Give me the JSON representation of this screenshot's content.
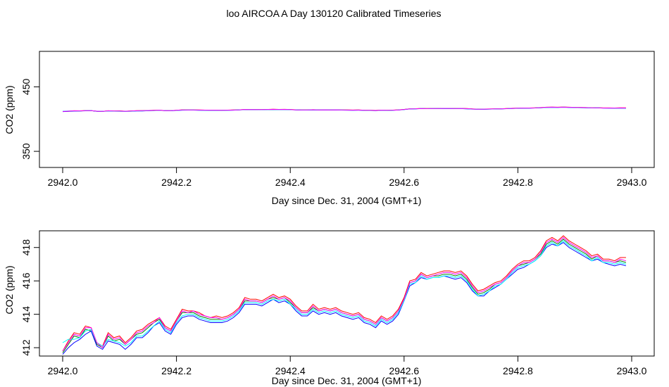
{
  "title": "loo AIRCOA A  Day 130120  Calibrated Timeseries",
  "chart_data": [
    {
      "type": "line",
      "xlabel": "Day since Dec. 31, 2004 (GMT+1)",
      "ylabel": "CO2 (ppm)",
      "xlim": [
        2942.0,
        2943.0
      ],
      "ylim": [
        325,
        505
      ],
      "x_ticks": [
        "2942.0",
        "2942.2",
        "2942.4",
        "2942.6",
        "2942.8",
        "2943.0"
      ],
      "y_ticks": [
        "350",
        "450"
      ],
      "x": [
        2942.0,
        2942.01,
        2942.02,
        2942.03,
        2942.04,
        2942.05,
        2942.06,
        2942.07,
        2942.08,
        2942.09,
        2942.1,
        2942.11,
        2942.12,
        2942.13,
        2942.14,
        2942.15,
        2942.16,
        2942.17,
        2942.18,
        2942.19,
        2942.2,
        2942.21,
        2942.22,
        2942.23,
        2942.24,
        2942.25,
        2942.26,
        2942.27,
        2942.28,
        2942.29,
        2942.3,
        2942.31,
        2942.32,
        2942.33,
        2942.34,
        2942.35,
        2942.36,
        2942.37,
        2942.38,
        2942.39,
        2942.4,
        2942.41,
        2942.42,
        2942.43,
        2942.44,
        2942.45,
        2942.46,
        2942.47,
        2942.48,
        2942.49,
        2942.5,
        2942.51,
        2942.52,
        2942.53,
        2942.54,
        2942.55,
        2942.56,
        2942.57,
        2942.58,
        2942.59,
        2942.6,
        2942.61,
        2942.62,
        2942.63,
        2942.64,
        2942.65,
        2942.66,
        2942.67,
        2942.68,
        2942.69,
        2942.7,
        2942.71,
        2942.72,
        2942.73,
        2942.74,
        2942.75,
        2942.76,
        2942.77,
        2942.78,
        2942.79,
        2942.8,
        2942.81,
        2942.82,
        2942.83,
        2942.84,
        2942.85,
        2942.86,
        2942.87,
        2942.88,
        2942.89,
        2942.9,
        2942.91,
        2942.92,
        2942.93,
        2942.94,
        2942.95,
        2942.96,
        2942.97,
        2942.98,
        2942.99
      ],
      "series": [
        {
          "color": "#ff0000",
          "values": [
            411.8,
            412.4,
            412.9,
            412.8,
            413.3,
            413.2,
            412.3,
            412.1,
            412.9,
            412.6,
            412.7,
            412.3,
            412.6,
            413.0,
            413.1,
            413.4,
            413.6,
            413.8,
            413.3,
            413.1,
            413.7,
            414.3,
            414.2,
            414.2,
            414.1,
            413.9,
            413.8,
            413.9,
            413.8,
            413.9,
            414.1,
            414.4,
            415.0,
            414.9,
            414.9,
            414.8,
            415.0,
            415.2,
            415.0,
            415.1,
            414.9,
            414.5,
            414.2,
            414.2,
            414.6,
            414.3,
            414.4,
            414.3,
            414.4,
            414.2,
            414.1,
            414.0,
            414.1,
            413.8,
            413.7,
            413.5,
            413.9,
            413.7,
            413.9,
            414.3,
            415.0,
            416.0,
            416.1,
            416.5,
            416.3,
            416.4,
            416.5,
            416.6,
            416.6,
            416.5,
            416.6,
            416.3,
            415.8,
            415.4,
            415.5,
            415.7,
            415.9,
            416.0,
            416.3,
            416.7,
            417.0,
            417.2,
            417.2,
            417.4,
            417.8,
            418.4,
            418.6,
            418.4,
            418.7,
            418.4,
            418.2,
            418.0,
            417.8,
            417.5,
            417.6,
            417.3,
            417.3,
            417.2,
            417.4,
            417.4
          ]
        },
        {
          "color": "#008000",
          "values": [
            411.7,
            412.2,
            412.7,
            412.6,
            413.1,
            413.0,
            412.2,
            412.0,
            412.7,
            412.4,
            412.5,
            412.2,
            412.5,
            412.8,
            412.9,
            413.2,
            413.5,
            413.7,
            413.2,
            413.0,
            413.6,
            414.1,
            414.1,
            414.1,
            413.9,
            413.8,
            413.7,
            413.7,
            413.7,
            413.8,
            414.0,
            414.3,
            414.8,
            414.8,
            414.8,
            414.7,
            414.9,
            415.0,
            414.9,
            415.0,
            414.7,
            414.4,
            414.1,
            414.1,
            414.4,
            414.2,
            414.3,
            414.2,
            414.3,
            414.1,
            414.0,
            413.9,
            414.0,
            413.7,
            413.6,
            413.4,
            413.8,
            413.6,
            413.8,
            414.2,
            414.9,
            415.9,
            416.0,
            416.4,
            416.2,
            416.3,
            416.3,
            416.4,
            416.4,
            416.3,
            416.4,
            416.1,
            415.6,
            415.2,
            415.3,
            415.5,
            415.8,
            415.9,
            416.2,
            416.6,
            416.9,
            417.0,
            417.1,
            417.3,
            417.6,
            418.2,
            418.4,
            418.2,
            418.5,
            418.2,
            418.0,
            417.8,
            417.6,
            417.3,
            417.5,
            417.2,
            417.2,
            417.1,
            417.2,
            417.1
          ]
        },
        {
          "color": "#0000ff",
          "values": [
            411.6,
            412.0,
            412.3,
            412.5,
            412.8,
            413.0,
            412.1,
            411.9,
            412.4,
            412.3,
            412.2,
            411.9,
            412.2,
            412.6,
            412.6,
            412.9,
            413.3,
            413.5,
            413.0,
            412.8,
            413.4,
            413.8,
            413.9,
            413.9,
            413.7,
            413.6,
            413.5,
            413.5,
            413.5,
            413.6,
            413.8,
            414.1,
            414.6,
            414.6,
            414.6,
            414.5,
            414.7,
            414.9,
            414.7,
            414.8,
            414.6,
            414.2,
            413.9,
            413.9,
            414.2,
            414.0,
            414.1,
            414.0,
            414.1,
            413.9,
            413.8,
            413.7,
            413.8,
            413.5,
            413.4,
            413.2,
            413.6,
            413.4,
            413.6,
            414.0,
            414.8,
            415.7,
            415.9,
            416.2,
            416.1,
            416.2,
            416.2,
            416.3,
            416.2,
            416.1,
            416.2,
            415.9,
            415.4,
            415.1,
            415.1,
            415.4,
            415.6,
            415.8,
            416.1,
            416.4,
            416.7,
            416.8,
            417.0,
            417.2,
            417.5,
            418.0,
            418.2,
            418.1,
            418.3,
            418.0,
            417.8,
            417.6,
            417.4,
            417.2,
            417.3,
            417.1,
            417.0,
            416.9,
            417.0,
            416.9
          ]
        },
        {
          "color": "#00ffff",
          "values": [
            412.3,
            412.5,
            412.5,
            412.6,
            413.0,
            413.1,
            412.3,
            412.1,
            412.5,
            412.4,
            412.3,
            412.1,
            412.3,
            412.7,
            412.7,
            413.0,
            413.3,
            413.6,
            413.1,
            412.9,
            413.5,
            413.9,
            414.0,
            414.0,
            413.8,
            413.7,
            413.6,
            413.6,
            413.6,
            413.7,
            413.9,
            414.2,
            414.7,
            414.7,
            414.7,
            414.6,
            414.8,
            414.9,
            414.8,
            414.9,
            414.6,
            414.3,
            414.0,
            414.0,
            414.3,
            414.1,
            414.2,
            414.1,
            414.2,
            414.0,
            413.9,
            413.8,
            413.9,
            413.6,
            413.5,
            413.3,
            413.7,
            413.5,
            413.7,
            414.1,
            414.8,
            415.8,
            415.9,
            416.3,
            416.1,
            416.2,
            416.2,
            416.3,
            416.3,
            416.2,
            416.3,
            416.0,
            415.5,
            415.1,
            415.2,
            415.4,
            415.7,
            415.8,
            416.1,
            416.5,
            416.8,
            416.9,
            417.0,
            417.2,
            417.5,
            418.1,
            418.3,
            418.1,
            418.4,
            418.1,
            417.9,
            417.7,
            417.5,
            417.2,
            417.4,
            417.1,
            417.1,
            417.0,
            417.1,
            417.0
          ]
        },
        {
          "color": "#ff00ff",
          "values": [
            411.8,
            412.3,
            412.8,
            412.7,
            413.2,
            413.2,
            412.3,
            412.0,
            412.8,
            412.5,
            412.6,
            412.2,
            412.5,
            412.9,
            413.0,
            413.3,
            413.5,
            413.8,
            413.2,
            413.0,
            413.6,
            414.2,
            414.1,
            414.2,
            414.0,
            413.9,
            413.8,
            413.8,
            413.7,
            413.8,
            414.0,
            414.3,
            414.9,
            414.8,
            414.8,
            414.7,
            414.9,
            415.1,
            414.9,
            415.0,
            414.8,
            414.4,
            414.1,
            414.1,
            414.5,
            414.2,
            414.3,
            414.2,
            414.3,
            414.1,
            414.0,
            413.9,
            414.0,
            413.7,
            413.6,
            413.4,
            413.8,
            413.6,
            413.8,
            414.2,
            414.9,
            415.9,
            416.0,
            416.4,
            416.2,
            416.3,
            416.4,
            416.5,
            416.5,
            416.4,
            416.5,
            416.2,
            415.7,
            415.3,
            415.4,
            415.6,
            415.8,
            415.9,
            416.2,
            416.6,
            416.9,
            417.1,
            417.1,
            417.3,
            417.7,
            418.3,
            418.5,
            418.3,
            418.6,
            418.3,
            418.1,
            417.9,
            417.7,
            417.4,
            417.5,
            417.2,
            417.2,
            417.1,
            417.3,
            417.2
          ]
        }
      ]
    },
    {
      "type": "line",
      "xlabel": "Day since Dec. 31, 2004 (GMT+1)",
      "ylabel": "CO2 (ppm)",
      "xlim": [
        2942.0,
        2943.0
      ],
      "ylim": [
        411.5,
        419.0
      ],
      "x_ticks": [
        "2942.0",
        "2942.2",
        "2942.4",
        "2942.6",
        "2942.8",
        "2943.0"
      ],
      "y_ticks": [
        "412",
        "414",
        "416",
        "418"
      ],
      "series_ref": "same as panel 1"
    }
  ]
}
